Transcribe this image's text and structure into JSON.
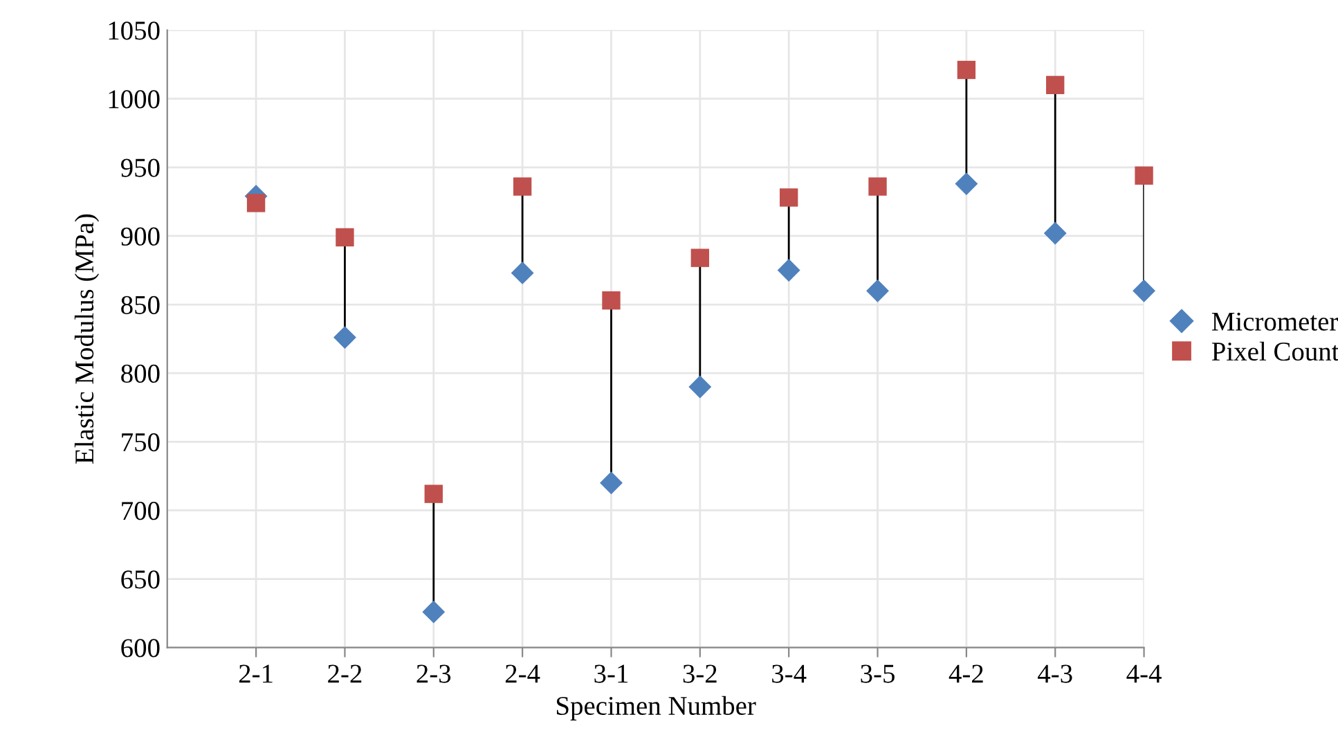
{
  "chart_data": {
    "type": "scatter",
    "xlabel": "Specimen Number",
    "ylabel": "Elastic Modulus (MPa)",
    "categories": [
      "2-1",
      "2-2",
      "2-3",
      "2-4",
      "3-1",
      "3-2",
      "3-4",
      "3-5",
      "4-2",
      "4-3",
      "4-4"
    ],
    "series": [
      {
        "name": "Micrometer",
        "color": "#4f81bd",
        "marker": "diamond",
        "values": [
          929,
          826,
          626,
          873,
          720,
          790,
          875,
          860,
          938,
          902,
          860
        ]
      },
      {
        "name": "Pixel Count",
        "color": "#c0504d",
        "marker": "square",
        "values": [
          924,
          899,
          712,
          936,
          853,
          884,
          928,
          936,
          1021,
          1010,
          944
        ]
      }
    ],
    "ylim": [
      600,
      1050
    ],
    "yticks": [
      600,
      650,
      700,
      750,
      800,
      850,
      900,
      950,
      1000,
      1050
    ],
    "grid": true,
    "legend": "right"
  }
}
